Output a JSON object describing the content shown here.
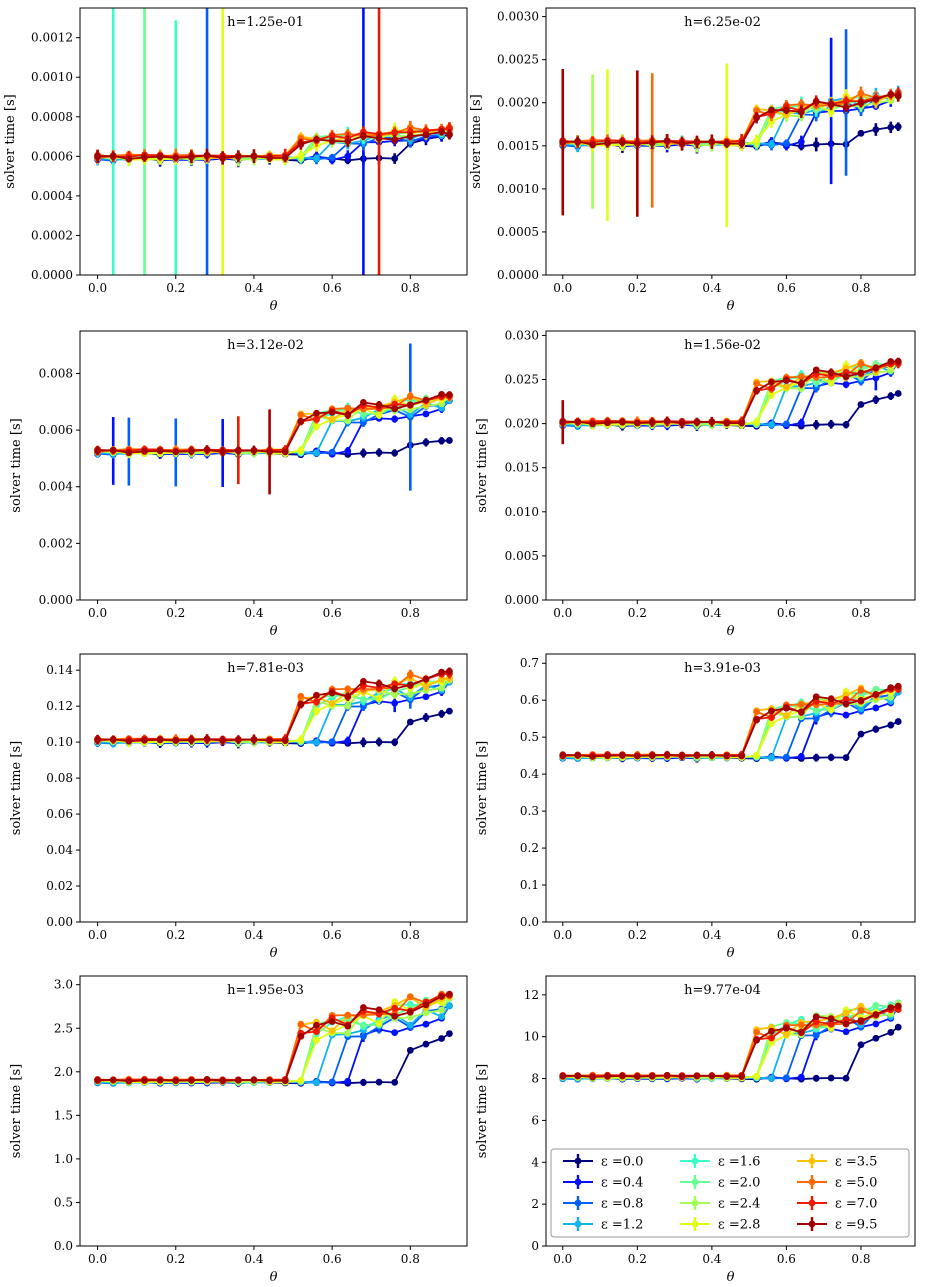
{
  "figure": {
    "xlabel": "θ",
    "ylabel": "solver time [s]",
    "x_ticks": [
      "0.0",
      "0.2",
      "0.4",
      "0.6",
      "0.8"
    ],
    "legend_placement": "lower-center of last panel, 3 columns",
    "legend_labels": [
      "ε =0.0",
      "ε =0.4",
      "ε =0.8",
      "ε =1.2",
      "ε =1.6",
      "ε =2.0",
      "ε =2.4",
      "ε =2.8",
      "ε =3.5",
      "ε =5.0",
      "ε =7.0",
      "ε =9.5"
    ]
  },
  "chart_data": {
    "type": "line",
    "x": [
      0.0,
      0.04,
      0.08,
      0.12,
      0.16,
      0.2,
      0.24,
      0.28,
      0.32,
      0.36,
      0.4,
      0.44,
      0.48,
      0.52,
      0.56,
      0.6,
      0.64,
      0.68,
      0.72,
      0.76,
      0.8,
      0.84,
      0.88,
      0.9
    ],
    "xlim": [
      -0.045,
      0.945
    ],
    "grid": false,
    "epsilons": [
      "0.0",
      "0.4",
      "0.8",
      "1.2",
      "1.6",
      "2.0",
      "2.4",
      "2.8",
      "3.5",
      "5.0",
      "7.0",
      "9.5"
    ],
    "series_colors": [
      "#00007f",
      "#0010ff",
      "#0060ff",
      "#10b4ef",
      "#39ffc6",
      "#66ff93",
      "#a4ff52",
      "#e1ff15",
      "#ffc000",
      "#ff6800",
      "#ee1a00",
      "#a50000"
    ],
    "panels": [
      {
        "title": "h=1.25e-01",
        "ylim": [
          0,
          0.00135
        ],
        "yticks": [
          0,
          0.0002,
          0.0004,
          0.0006,
          0.0008,
          0.001,
          0.0012
        ],
        "ytick_labels": [
          "0.0000",
          "0.0002",
          "0.0004",
          "0.0006",
          "0.0008",
          "0.0010",
          "0.0012"
        ],
        "base": 0.00059,
        "high": [
          0.00072,
          0.00072,
          0.00074,
          0.00074,
          0.00074,
          0.00072
        ],
        "scale": 1,
        "noise": 1.2e-05,
        "err": 2.5e-05,
        "anomalies": [
          [
            4,
            1,
            0.0008
          ],
          [
            4,
            5,
            0.0007
          ],
          [
            5,
            3,
            0.0009
          ],
          [
            2,
            7,
            0.0012
          ],
          [
            7,
            8,
            0.0011
          ],
          [
            1,
            17,
            0.0011
          ],
          [
            10,
            18,
            0.00112
          ]
        ]
      },
      {
        "title": "h=6.25e-02",
        "ylim": [
          0,
          0.0031
        ],
        "yticks": [
          0,
          0.0005,
          0.001,
          0.0015,
          0.002,
          0.0025,
          0.003
        ],
        "ytick_labels": [
          "0.0000",
          "0.0005",
          "0.0010",
          "0.0015",
          "0.0020",
          "0.0025",
          "0.0030"
        ],
        "base": 0.00152,
        "high": [
          0.00175,
          0.0021,
          0.0021,
          0.0021,
          0.0021,
          0.0021
        ],
        "scale": 1,
        "noise": 3e-05,
        "err": 6e-05,
        "anomalies": [
          [
            11,
            0,
            0.00085
          ],
          [
            6,
            2,
            0.00078
          ],
          [
            7,
            3,
            0.00088
          ],
          [
            11,
            5,
            0.00085
          ],
          [
            9,
            6,
            0.00078
          ],
          [
            7,
            11,
            0.00095
          ],
          [
            1,
            18,
            0.00085
          ],
          [
            2,
            19,
            0.00085
          ]
        ]
      },
      {
        "title": "h=3.12e-02",
        "ylim": [
          0,
          0.0095
        ],
        "yticks": [
          0,
          0.002,
          0.004,
          0.006,
          0.008
        ],
        "ytick_labels": [
          "0.000",
          "0.002",
          "0.004",
          "0.006",
          "0.008"
        ],
        "base": 0.0052,
        "high": [
          0.0057,
          0.007,
          0.0072,
          0.0072,
          0.0072,
          0.0073
        ],
        "scale": 1,
        "noise": 7e-05,
        "err": 0.00012,
        "anomalies": [
          [
            1,
            1,
            0.0012
          ],
          [
            2,
            2,
            0.0012
          ],
          [
            2,
            5,
            0.0012
          ],
          [
            1,
            8,
            0.0012
          ],
          [
            10,
            9,
            0.0012
          ],
          [
            11,
            11,
            0.0015
          ],
          [
            2,
            20,
            0.0026
          ]
        ]
      },
      {
        "title": "h=1.56e-02",
        "ylim": [
          0,
          0.0305
        ],
        "yticks": [
          0,
          0.005,
          0.01,
          0.015,
          0.02,
          0.025,
          0.03
        ],
        "ytick_labels": [
          "0.000",
          "0.005",
          "0.010",
          "0.015",
          "0.020",
          "0.025",
          "0.030"
        ],
        "base": 0.0199,
        "high": [
          0.0236,
          0.0268,
          0.027,
          0.027,
          0.0268,
          0.0272
        ],
        "scale": 1,
        "noise": 0.0002,
        "err": 0.0004,
        "anomalies": [
          [
            11,
            0,
            0.0025
          ],
          [
            1,
            21,
            0.0014
          ]
        ]
      },
      {
        "title": "h=7.81e-03",
        "ylim": [
          0,
          0.149
        ],
        "yticks": [
          0,
          0.02,
          0.04,
          0.06,
          0.08,
          0.1,
          0.12,
          0.14
        ],
        "ytick_labels": [
          "0.00",
          "0.02",
          "0.04",
          "0.06",
          "0.08",
          "0.10",
          "0.12",
          "0.14"
        ],
        "base": 0.1,
        "high": [
          0.118,
          0.133,
          0.135,
          0.136,
          0.138,
          0.14
        ],
        "scale": 1,
        "noise": 0.0008,
        "err": 0.002,
        "anomalies": [
          [
            1,
            19,
            0.005
          ],
          [
            2,
            20,
            0.005
          ]
        ]
      },
      {
        "title": "h=3.91e-03",
        "ylim": [
          0,
          0.725
        ],
        "yticks": [
          0,
          0.1,
          0.2,
          0.3,
          0.4,
          0.5,
          0.6,
          0.7
        ],
        "ytick_labels": [
          "0.0",
          "0.1",
          "0.2",
          "0.3",
          "0.4",
          "0.5",
          "0.6",
          "0.7"
        ],
        "base": 0.445,
        "high": [
          0.545,
          0.62,
          0.635,
          0.635,
          0.63,
          0.64
        ],
        "scale": 1,
        "noise": 0.003,
        "err": 0.008,
        "anomalies": [
          [
            1,
            17,
            0.02
          ],
          [
            2,
            18,
            0.02
          ]
        ]
      },
      {
        "title": "h=1.95e-03",
        "ylim": [
          0,
          3.1
        ],
        "yticks": [
          0,
          0.5,
          1,
          1.5,
          2,
          2.5,
          3
        ],
        "ytick_labels": [
          "0.0",
          "0.5",
          "1.0",
          "1.5",
          "2.0",
          "2.5",
          "3.0"
        ],
        "base": 1.88,
        "high": [
          2.45,
          2.75,
          2.85,
          2.87,
          2.88,
          2.9
        ],
        "scale": 1,
        "noise": 0.012,
        "err": 0.03,
        "anomalies": [
          [
            1,
            17,
            0.08
          ],
          [
            2,
            18,
            0.08
          ]
        ]
      },
      {
        "title": "h=9.77e-04",
        "ylim": [
          0,
          12.9
        ],
        "yticks": [
          0,
          2,
          4,
          6,
          8,
          10,
          12
        ],
        "ytick_labels": [
          "0",
          "2",
          "4",
          "6",
          "8",
          "10",
          "12"
        ],
        "base": 8.02,
        "high": [
          10.5,
          11.4,
          11.6,
          11.5,
          11.3,
          11.5
        ],
        "scale": 1,
        "noise": 0.05,
        "err": 0.12,
        "anomalies": [
          [
            1,
            17,
            0.3
          ],
          [
            2,
            18,
            0.3
          ]
        ]
      }
    ]
  }
}
